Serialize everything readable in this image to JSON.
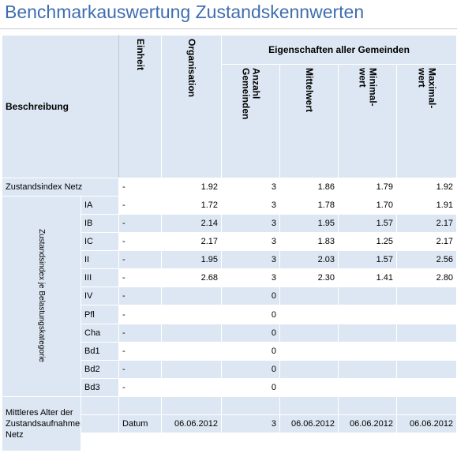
{
  "title": "Benchmarkauswertung Zustandskennwerten",
  "headers": {
    "beschreibung": "Beschreibung",
    "einheit": "Einheit",
    "organisation": "Organisation",
    "eigenschaften": "Eigenschaften aller Gemeinden",
    "anzahl": "Anzahl\nGemeinden",
    "mittelwert": "Mittelwert",
    "minimal": "Minimal-\nwert",
    "maximal": "Maximal-\nwert"
  },
  "summary_row": {
    "label": "Zustandsindex Netz",
    "einheit": "-",
    "organisation": "1.92",
    "anzahl": "3",
    "mittelwert": "1.86",
    "minimal": "1.79",
    "maximal": "1.92"
  },
  "group_label": "Zustandsindex je Belastungskategorie",
  "group_rows": [
    {
      "label": "IA",
      "einheit": "-",
      "organisation": "1.72",
      "anzahl": "3",
      "mittelwert": "1.78",
      "minimal": "1.70",
      "maximal": "1.91"
    },
    {
      "label": "IB",
      "einheit": "-",
      "organisation": "2.14",
      "anzahl": "3",
      "mittelwert": "1.95",
      "minimal": "1.57",
      "maximal": "2.17"
    },
    {
      "label": "IC",
      "einheit": "-",
      "organisation": "2.17",
      "anzahl": "3",
      "mittelwert": "1.83",
      "minimal": "1.25",
      "maximal": "2.17"
    },
    {
      "label": "II",
      "einheit": "-",
      "organisation": "1.95",
      "anzahl": "3",
      "mittelwert": "2.03",
      "minimal": "1.57",
      "maximal": "2.56"
    },
    {
      "label": "III",
      "einheit": "-",
      "organisation": "2.68",
      "anzahl": "3",
      "mittelwert": "2.30",
      "minimal": "1.41",
      "maximal": "2.80"
    },
    {
      "label": "IV",
      "einheit": "-",
      "organisation": "",
      "anzahl": "0",
      "mittelwert": "",
      "minimal": "",
      "maximal": ""
    },
    {
      "label": "Pfl",
      "einheit": "-",
      "organisation": "",
      "anzahl": "0",
      "mittelwert": "",
      "minimal": "",
      "maximal": ""
    },
    {
      "label": "Cha",
      "einheit": "-",
      "organisation": "",
      "anzahl": "0",
      "mittelwert": "",
      "minimal": "",
      "maximal": ""
    },
    {
      "label": "Bd1",
      "einheit": "-",
      "organisation": "",
      "anzahl": "0",
      "mittelwert": "",
      "minimal": "",
      "maximal": ""
    },
    {
      "label": "Bd2",
      "einheit": "-",
      "organisation": "",
      "anzahl": "0",
      "mittelwert": "",
      "minimal": "",
      "maximal": ""
    },
    {
      "label": "Bd3",
      "einheit": "-",
      "organisation": "",
      "anzahl": "0",
      "mittelwert": "",
      "minimal": "",
      "maximal": ""
    }
  ],
  "footer_row": {
    "label": "Mittleres Alter der Zustandsaufnahmen Netz",
    "einheit": "Datum",
    "organisation": "06.06.2012",
    "anzahl": "3",
    "mittelwert": "06.06.2012",
    "minimal": "06.06.2012",
    "maximal": "06.06.2012"
  }
}
